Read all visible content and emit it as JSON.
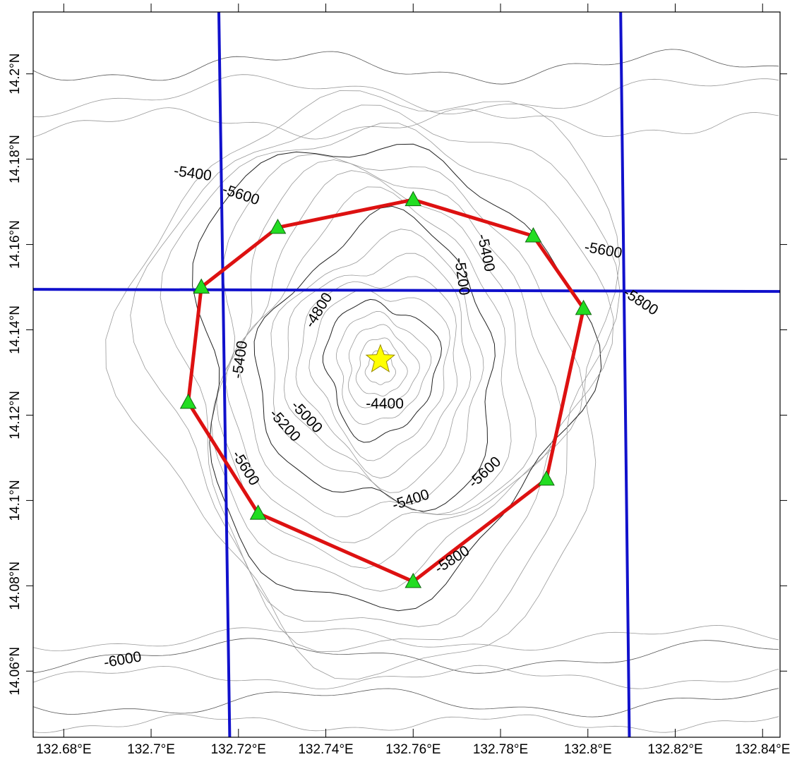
{
  "map": {
    "x_axis": {
      "min": 132.673,
      "max": 132.844,
      "ticks": [
        {
          "value": 132.68,
          "label": "132.68°E"
        },
        {
          "value": 132.7,
          "label": "132.7°E"
        },
        {
          "value": 132.72,
          "label": "132.72°E"
        },
        {
          "value": 132.74,
          "label": "132.74°E"
        },
        {
          "value": 132.76,
          "label": "132.76°E"
        },
        {
          "value": 132.78,
          "label": "132.78°E"
        },
        {
          "value": 132.8,
          "label": "132.8°E"
        },
        {
          "value": 132.82,
          "label": "132.82°E"
        },
        {
          "value": 132.84,
          "label": "132.84°E"
        }
      ]
    },
    "y_axis": {
      "min": 14.0445,
      "max": 14.2145,
      "ticks": [
        {
          "value": 14.06,
          "label": "14.06°N"
        },
        {
          "value": 14.08,
          "label": "14.08°N"
        },
        {
          "value": 14.1,
          "label": "14.1°N"
        },
        {
          "value": 14.12,
          "label": "14.12°N"
        },
        {
          "value": 14.14,
          "label": "14.14°N"
        },
        {
          "value": 14.16,
          "label": "14.16°N"
        },
        {
          "value": 14.18,
          "label": "14.18°N"
        },
        {
          "value": 14.2,
          "label": "14.2°N"
        }
      ]
    },
    "summit_star": {
      "lon": 132.7525,
      "lat": 14.133,
      "color": "#ffff00",
      "icon": "star-icon"
    },
    "station_polygon": {
      "color": "#dd1111",
      "stations": [
        {
          "lon": 132.76,
          "lat": 14.1705
        },
        {
          "lon": 132.7875,
          "lat": 14.162
        },
        {
          "lon": 132.799,
          "lat": 14.145
        },
        {
          "lon": 132.7905,
          "lat": 14.105
        },
        {
          "lon": 132.76,
          "lat": 14.081
        },
        {
          "lon": 132.7245,
          "lat": 14.097
        },
        {
          "lon": 132.7085,
          "lat": 14.123
        },
        {
          "lon": 132.7115,
          "lat": 14.15
        },
        {
          "lon": 132.729,
          "lat": 14.164
        }
      ],
      "station_color": "#22dd22",
      "station_icon": "triangle-icon"
    },
    "survey_lines": {
      "color": "#1111cc",
      "lines": [
        {
          "points": [
            [
              132.7155,
              14.2145
            ],
            [
              132.718,
              14.0445
            ]
          ]
        },
        {
          "points": [
            [
              132.8075,
              14.2145
            ],
            [
              132.8095,
              14.0445
            ]
          ]
        },
        {
          "points": [
            [
              132.673,
              14.1495
            ],
            [
              132.844,
              14.149
            ]
          ]
        }
      ]
    },
    "contour_labels": [
      {
        "text": "-5400",
        "lon": 132.7095,
        "lat": 14.1765,
        "rot": 8
      },
      {
        "text": "-5600",
        "lon": 132.7205,
        "lat": 14.1715,
        "rot": 18
      },
      {
        "text": "-5400",
        "lon": 132.7765,
        "lat": 14.158,
        "rot": 78
      },
      {
        "text": "-5200",
        "lon": 132.771,
        "lat": 14.1525,
        "rot": 82
      },
      {
        "text": "-5600",
        "lon": 132.8035,
        "lat": 14.1585,
        "rot": 10
      },
      {
        "text": "-5800",
        "lon": 132.812,
        "lat": 14.1465,
        "rot": 33
      },
      {
        "text": "-4800",
        "lon": 132.7385,
        "lat": 14.1445,
        "rot": -58
      },
      {
        "text": "-5400",
        "lon": 132.7205,
        "lat": 14.133,
        "rot": -82
      },
      {
        "text": "-4400",
        "lon": 132.7535,
        "lat": 14.1225,
        "rot": 0
      },
      {
        "text": "-5000",
        "lon": 132.7355,
        "lat": 14.1195,
        "rot": 47
      },
      {
        "text": "-5200",
        "lon": 132.7305,
        "lat": 14.1175,
        "rot": 48
      },
      {
        "text": "-5600",
        "lon": 132.7215,
        "lat": 14.1075,
        "rot": 58
      },
      {
        "text": "-5400",
        "lon": 132.7595,
        "lat": 14.1,
        "rot": -18
      },
      {
        "text": "-5600",
        "lon": 132.7765,
        "lat": 14.1065,
        "rot": -43
      },
      {
        "text": "-5800",
        "lon": 132.769,
        "lat": 14.086,
        "rot": -33
      },
      {
        "text": "-6000",
        "lon": 132.6935,
        "lat": 14.0625,
        "rot": -10
      }
    ]
  }
}
